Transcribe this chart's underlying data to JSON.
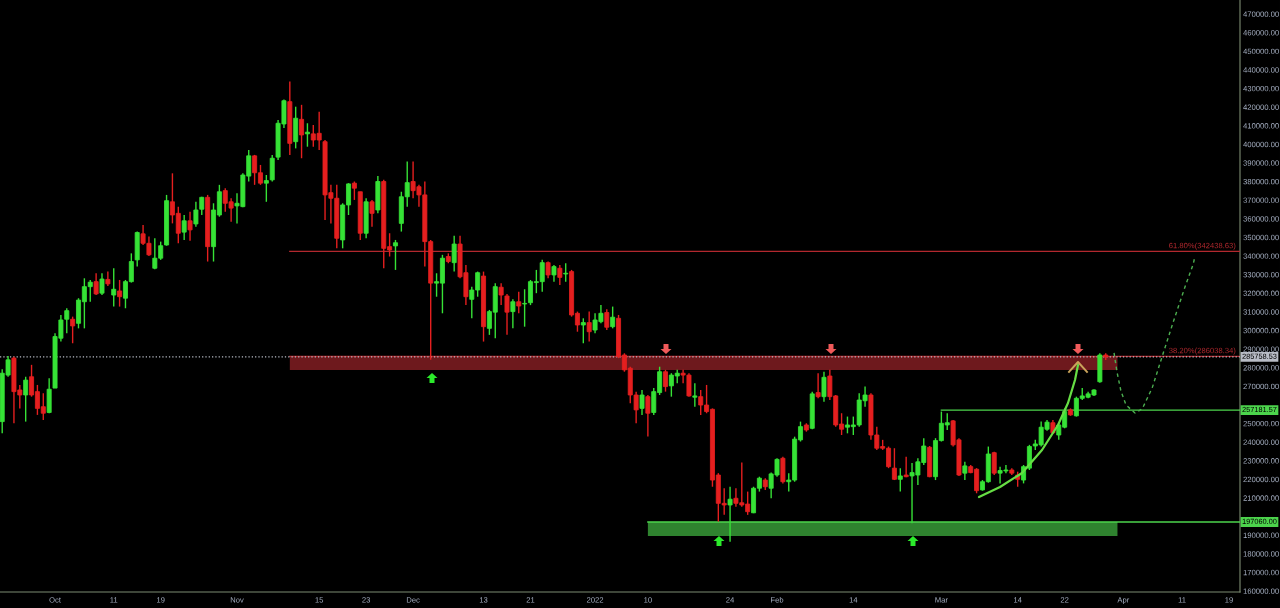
{
  "chart_data": {
    "type": "candlestick",
    "x": [
      "2021-09-22",
      "2021-09-23",
      "2021-09-24",
      "2021-09-25",
      "2021-09-26",
      "2021-09-27",
      "2021-09-28",
      "2021-09-29",
      "2021-09-30",
      "2021-10-01",
      "2021-10-02",
      "2021-10-03",
      "2021-10-04",
      "2021-10-05",
      "2021-10-06",
      "2021-10-07",
      "2021-10-08",
      "2021-10-09",
      "2021-10-10",
      "2021-10-11",
      "2021-10-12",
      "2021-10-13",
      "2021-10-14",
      "2021-10-15",
      "2021-10-16",
      "2021-10-17",
      "2021-10-18",
      "2021-10-19",
      "2021-10-20",
      "2021-10-21",
      "2021-10-22",
      "2021-10-23",
      "2021-10-24",
      "2021-10-25",
      "2021-10-26",
      "2021-10-27",
      "2021-10-28",
      "2021-10-29",
      "2021-10-30",
      "2021-10-31",
      "2021-11-01",
      "2021-11-02",
      "2021-11-03",
      "2021-11-04",
      "2021-11-05",
      "2021-11-06",
      "2021-11-07",
      "2021-11-08",
      "2021-11-09",
      "2021-11-10",
      "2021-11-11",
      "2021-11-12",
      "2021-11-13",
      "2021-11-14",
      "2021-11-15",
      "2021-11-16",
      "2021-11-17",
      "2021-11-18",
      "2021-11-19",
      "2021-11-20",
      "2021-11-21",
      "2021-11-22",
      "2021-11-23",
      "2021-11-24",
      "2021-11-25",
      "2021-11-26",
      "2021-11-27",
      "2021-11-28",
      "2021-11-29",
      "2021-11-30",
      "2021-12-01",
      "2021-12-02",
      "2021-12-03",
      "2021-12-04",
      "2021-12-05",
      "2021-12-06",
      "2021-12-07",
      "2021-12-08",
      "2021-12-09",
      "2021-12-10",
      "2021-12-11",
      "2021-12-12",
      "2021-12-13",
      "2021-12-14",
      "2021-12-15",
      "2021-12-16",
      "2021-12-17",
      "2021-12-18",
      "2021-12-19",
      "2021-12-20",
      "2021-12-21",
      "2021-12-22",
      "2021-12-23",
      "2021-12-24",
      "2021-12-25",
      "2021-12-26",
      "2021-12-27",
      "2021-12-28",
      "2021-12-29",
      "2021-12-30",
      "2021-12-31",
      "2022-01-01",
      "2022-01-02",
      "2022-01-03",
      "2022-01-04",
      "2022-01-05",
      "2022-01-06",
      "2022-01-07",
      "2022-01-08",
      "2022-01-09",
      "2022-01-10",
      "2022-01-11",
      "2022-01-12",
      "2022-01-13",
      "2022-01-14",
      "2022-01-15",
      "2022-01-16",
      "2022-01-17",
      "2022-01-18",
      "2022-01-19",
      "2022-01-20",
      "2022-01-21",
      "2022-01-22",
      "2022-01-23",
      "2022-01-24",
      "2022-01-25",
      "2022-01-26",
      "2022-01-27",
      "2022-01-28",
      "2022-01-29",
      "2022-01-30",
      "2022-01-31",
      "2022-02-01",
      "2022-02-02",
      "2022-02-03",
      "2022-02-04",
      "2022-02-05",
      "2022-02-06",
      "2022-02-07",
      "2022-02-08",
      "2022-02-09",
      "2022-02-10",
      "2022-02-11",
      "2022-02-12",
      "2022-02-13",
      "2022-02-14",
      "2022-02-15",
      "2022-02-16",
      "2022-02-17",
      "2022-02-18",
      "2022-02-19",
      "2022-02-20",
      "2022-02-21",
      "2022-02-22",
      "2022-02-23",
      "2022-02-24",
      "2022-02-25",
      "2022-02-26",
      "2022-02-27",
      "2022-02-28",
      "2022-03-01",
      "2022-03-02",
      "2022-03-03",
      "2022-03-04",
      "2022-03-05",
      "2022-03-06",
      "2022-03-07",
      "2022-03-08",
      "2022-03-09",
      "2022-03-10",
      "2022-03-11",
      "2022-03-12",
      "2022-03-13",
      "2022-03-14",
      "2022-03-15",
      "2022-03-16",
      "2022-03-17",
      "2022-03-18",
      "2022-03-19",
      "2022-03-20",
      "2022-03-21",
      "2022-03-22",
      "2022-03-23",
      "2022-03-24",
      "2022-03-25",
      "2022-03-26",
      "2022-03-27",
      "2022-03-28",
      "2022-03-29"
    ],
    "ohlc": [
      [
        251000,
        279100,
        244700,
        277000
      ],
      [
        276000,
        286200,
        275100,
        284200
      ],
      [
        285100,
        285900,
        250100,
        267100
      ],
      [
        268000,
        270700,
        258100,
        265300
      ],
      [
        265300,
        275100,
        251000,
        273300
      ],
      [
        275100,
        281500,
        264400,
        265300
      ],
      [
        267100,
        270700,
        254600,
        258100
      ],
      [
        259000,
        266200,
        251900,
        255500
      ],
      [
        255900,
        274300,
        255500,
        268400
      ],
      [
        269000,
        298500,
        269000,
        296700
      ],
      [
        295800,
        308300,
        294000,
        305600
      ],
      [
        306000,
        311900,
        298500,
        310600
      ],
      [
        306000,
        307400,
        293100,
        302400
      ],
      [
        303800,
        317300,
        301100,
        316300
      ],
      [
        315400,
        328000,
        301100,
        323500
      ],
      [
        323500,
        327100,
        315400,
        325900
      ],
      [
        326200,
        330700,
        319000,
        319600
      ],
      [
        320000,
        330700,
        319000,
        327600
      ],
      [
        327400,
        331600,
        323900,
        325000
      ],
      [
        319000,
        333400,
        312800,
        322100
      ],
      [
        321200,
        327100,
        312800,
        318100
      ],
      [
        317300,
        327100,
        311900,
        326200
      ],
      [
        326200,
        341400,
        325700,
        337000
      ],
      [
        337900,
        353100,
        334300,
        352600
      ],
      [
        351900,
        356600,
        345900,
        346800
      ],
      [
        346800,
        350400,
        340000,
        340600
      ],
      [
        333400,
        349500,
        332900,
        338800
      ],
      [
        338800,
        347700,
        337900,
        345500
      ],
      [
        345900,
        372800,
        345500,
        369700
      ],
      [
        369100,
        384400,
        357500,
        362000
      ],
      [
        362900,
        366500,
        346800,
        352200
      ],
      [
        352800,
        362000,
        348600,
        358900
      ],
      [
        358900,
        363800,
        348200,
        354000
      ],
      [
        357200,
        369100,
        355700,
        364700
      ],
      [
        365100,
        371800,
        362000,
        371500
      ],
      [
        371500,
        372800,
        337000,
        345000
      ],
      [
        345000,
        368300,
        337000,
        364700
      ],
      [
        362000,
        378200,
        361100,
        374500
      ],
      [
        375100,
        376400,
        363800,
        368300
      ],
      [
        369100,
        371000,
        358400,
        365700
      ],
      [
        366900,
        373700,
        357500,
        368300
      ],
      [
        366500,
        384400,
        366200,
        383500
      ],
      [
        382900,
        396900,
        380000,
        393800
      ],
      [
        393800,
        394300,
        378200,
        384700
      ],
      [
        384700,
        388900,
        378200,
        379100
      ],
      [
        379100,
        383500,
        369100,
        380500
      ],
      [
        380900,
        394300,
        380000,
        392500
      ],
      [
        393100,
        413000,
        391600,
        411300
      ],
      [
        410900,
        424100,
        408700,
        423400
      ],
      [
        422900,
        433700,
        394300,
        400500
      ],
      [
        401400,
        420200,
        397800,
        414000
      ],
      [
        413400,
        421200,
        392500,
        405000
      ],
      [
        405600,
        411300,
        398700,
        406500
      ],
      [
        405600,
        410400,
        398700,
        402300
      ],
      [
        405900,
        417500,
        396900,
        402300
      ],
      [
        401400,
        402300,
        359300,
        372800
      ],
      [
        374000,
        378200,
        357500,
        371000
      ],
      [
        371000,
        378200,
        344100,
        349500
      ],
      [
        348600,
        368300,
        344100,
        367400
      ],
      [
        367400,
        379100,
        362000,
        378700
      ],
      [
        379100,
        380000,
        370100,
        376400
      ],
      [
        374500,
        374500,
        348600,
        352200
      ],
      [
        352200,
        371000,
        349500,
        369100
      ],
      [
        369100,
        370100,
        355700,
        362900
      ],
      [
        364700,
        382900,
        362900,
        380000
      ],
      [
        380000,
        380900,
        333400,
        344100
      ],
      [
        345000,
        352200,
        339700,
        343200
      ],
      [
        345400,
        348600,
        332500,
        347100
      ],
      [
        357500,
        374500,
        353100,
        371800
      ],
      [
        371800,
        390700,
        366500,
        379400
      ],
      [
        380000,
        390700,
        371000,
        375100
      ],
      [
        377200,
        378200,
        366500,
        372800
      ],
      [
        372800,
        380000,
        334300,
        347700
      ],
      [
        347700,
        348600,
        284200,
        325400
      ],
      [
        325400,
        330700,
        318100,
        326200
      ],
      [
        325400,
        340600,
        309200,
        338800
      ],
      [
        339700,
        341400,
        336100,
        337000
      ],
      [
        336400,
        350800,
        331600,
        346400
      ],
      [
        346400,
        350800,
        328000,
        328800
      ],
      [
        331000,
        335200,
        313600,
        318100
      ],
      [
        316700,
        323500,
        306500,
        321700
      ],
      [
        321700,
        331600,
        318100,
        331000
      ],
      [
        329200,
        331600,
        294000,
        302000
      ],
      [
        301100,
        311000,
        297600,
        310100
      ],
      [
        309800,
        325400,
        295800,
        323500
      ],
      [
        323200,
        325400,
        313600,
        319000
      ],
      [
        318500,
        319600,
        297600,
        309800
      ],
      [
        310100,
        316700,
        301100,
        315400
      ],
      [
        315400,
        320800,
        309200,
        313100
      ],
      [
        314200,
        322100,
        302000,
        314500
      ],
      [
        314900,
        327100,
        313600,
        326200
      ],
      [
        325700,
        332500,
        320000,
        326200
      ],
      [
        326200,
        337900,
        320800,
        336400
      ],
      [
        336400,
        337000,
        328000,
        329800
      ],
      [
        329800,
        335200,
        326200,
        334300
      ],
      [
        333400,
        335200,
        324400,
        328500
      ],
      [
        330300,
        336100,
        326200,
        330700
      ],
      [
        331600,
        332500,
        307400,
        308300
      ],
      [
        309200,
        310100,
        299300,
        302900
      ],
      [
        302900,
        306500,
        293100,
        304200
      ],
      [
        304200,
        310100,
        294000,
        299300
      ],
      [
        300200,
        309200,
        298500,
        305600
      ],
      [
        304700,
        313600,
        303800,
        309200
      ],
      [
        309600,
        311400,
        300200,
        301700
      ],
      [
        302000,
        312800,
        301100,
        307100
      ],
      [
        306500,
        308300,
        285100,
        285900
      ],
      [
        286800,
        287700,
        277800,
        278800
      ],
      [
        279700,
        280500,
        260800,
        265300
      ],
      [
        265300,
        267100,
        250100,
        257300
      ],
      [
        258100,
        268000,
        254600,
        265300
      ],
      [
        264400,
        265300,
        243000,
        255500
      ],
      [
        255900,
        269000,
        254600,
        267100
      ],
      [
        266600,
        280500,
        265300,
        277800
      ],
      [
        277800,
        278800,
        267100,
        269800
      ],
      [
        270200,
        277000,
        264400,
        276000
      ],
      [
        275500,
        278800,
        271600,
        277000
      ],
      [
        277000,
        278800,
        271600,
        276000
      ],
      [
        276000,
        277000,
        264400,
        264800
      ],
      [
        264100,
        271600,
        259000,
        264800
      ],
      [
        264400,
        268000,
        254600,
        259900
      ],
      [
        259900,
        270700,
        255500,
        256400
      ],
      [
        257600,
        258100,
        216000,
        219600
      ],
      [
        222300,
        223300,
        197300,
        207100
      ],
      [
        207100,
        215200,
        200900,
        206200
      ],
      [
        206200,
        216000,
        186500,
        209300
      ],
      [
        209800,
        215200,
        205300,
        207100
      ],
      [
        207400,
        229000,
        205300,
        206200
      ],
      [
        206700,
        213400,
        200900,
        202600
      ],
      [
        202000,
        216000,
        201800,
        215200
      ],
      [
        215200,
        221400,
        213400,
        220600
      ],
      [
        219600,
        220600,
        214300,
        216000
      ],
      [
        215200,
        223600,
        209800,
        222900
      ],
      [
        222300,
        231300,
        221400,
        230700
      ],
      [
        231300,
        232100,
        217800,
        218700
      ],
      [
        218700,
        223300,
        213400,
        219600
      ],
      [
        219600,
        242900,
        218700,
        241600
      ],
      [
        241200,
        251000,
        240300,
        248300
      ],
      [
        249200,
        250100,
        245600,
        246500
      ],
      [
        247400,
        267100,
        246900,
        265900
      ],
      [
        266600,
        277000,
        263500,
        264400
      ],
      [
        264400,
        277800,
        261700,
        274800
      ],
      [
        275500,
        278800,
        262600,
        264400
      ],
      [
        264800,
        265300,
        248300,
        249200
      ],
      [
        249700,
        255500,
        243800,
        246900
      ],
      [
        248000,
        253700,
        244700,
        249200
      ],
      [
        248300,
        253700,
        243800,
        249200
      ],
      [
        249200,
        266200,
        248300,
        262600
      ],
      [
        262200,
        269800,
        259000,
        265300
      ],
      [
        265300,
        266200,
        241200,
        243800
      ],
      [
        243800,
        248300,
        235800,
        236700
      ],
      [
        237600,
        241200,
        235800,
        236700
      ],
      [
        236700,
        237600,
        226000,
        226800
      ],
      [
        226000,
        236700,
        219600,
        220000
      ],
      [
        220000,
        226000,
        213400,
        221800
      ],
      [
        222300,
        232100,
        221100,
        221400
      ],
      [
        221800,
        228700,
        196400,
        223600
      ],
      [
        222300,
        231300,
        216900,
        229400
      ],
      [
        229000,
        242100,
        227700,
        237900
      ],
      [
        237200,
        237900,
        221100,
        221400
      ],
      [
        221400,
        242100,
        219600,
        240800
      ],
      [
        240800,
        256400,
        240300,
        250100
      ],
      [
        249200,
        255500,
        246500,
        250400
      ],
      [
        251400,
        251900,
        237600,
        238500
      ],
      [
        241200,
        242100,
        221800,
        222300
      ],
      [
        223300,
        229400,
        219600,
        227200
      ],
      [
        226800,
        227700,
        223300,
        223600
      ],
      [
        225400,
        226000,
        212500,
        213900
      ],
      [
        214300,
        219600,
        213900,
        218700
      ],
      [
        218700,
        237600,
        218200,
        233600
      ],
      [
        234300,
        234800,
        222300,
        223300
      ],
      [
        223300,
        226800,
        217800,
        224700
      ],
      [
        224500,
        227700,
        223300,
        225000
      ],
      [
        225000,
        226000,
        222300,
        223300
      ],
      [
        222300,
        224100,
        216000,
        220000
      ],
      [
        219600,
        227700,
        217800,
        226800
      ],
      [
        226000,
        238500,
        225000,
        237600
      ],
      [
        237900,
        241200,
        235800,
        239000
      ],
      [
        238500,
        251000,
        237600,
        248000
      ],
      [
        246900,
        251900,
        246100,
        250700
      ],
      [
        250400,
        251900,
        244300,
        245000
      ],
      [
        243800,
        250100,
        241200,
        249200
      ],
      [
        248000,
        258100,
        247400,
        256400
      ],
      [
        257300,
        258100,
        254100,
        254600
      ],
      [
        254100,
        264400,
        253700,
        263500
      ],
      [
        263500,
        269000,
        262600,
        264800
      ],
      [
        264100,
        267100,
        263500,
        265900
      ],
      [
        265300,
        268400,
        264800,
        268000
      ],
      [
        272400,
        287700,
        271900,
        286800
      ],
      [
        286800,
        287700,
        284100,
        285758.53
      ]
    ],
    "colors": [
      "#36e236",
      "#36e236",
      "#e51f1f",
      "#e51f1f",
      "#36e236",
      "#e51f1f",
      "#e51f1f",
      "#e51f1f",
      "#36e236",
      "#36e236",
      "#36e236",
      "#36e236",
      "#e51f1f",
      "#36e236",
      "#36e236",
      "#36e236",
      "#e51f1f",
      "#36e236",
      "#e51f1f",
      "#36e236",
      "#e51f1f",
      "#36e236",
      "#36e236",
      "#36e236",
      "#e51f1f",
      "#e51f1f",
      "#36e236",
      "#36e236",
      "#36e236",
      "#e51f1f",
      "#e51f1f",
      "#36e236",
      "#e51f1f",
      "#36e236",
      "#36e236",
      "#e51f1f",
      "#36e236",
      "#36e236",
      "#e51f1f",
      "#e51f1f",
      "#36e236",
      "#36e236",
      "#36e236",
      "#e51f1f",
      "#e51f1f",
      "#36e236",
      "#36e236",
      "#36e236",
      "#36e236",
      "#e51f1f",
      "#36e236",
      "#e51f1f",
      "#36e236",
      "#e51f1f",
      "#e51f1f",
      "#e51f1f",
      "#e51f1f",
      "#e51f1f",
      "#36e236",
      "#36e236",
      "#e51f1f",
      "#e51f1f",
      "#36e236",
      "#e51f1f",
      "#36e236",
      "#e51f1f",
      "#e51f1f",
      "#36e236",
      "#36e236",
      "#36e236",
      "#e51f1f",
      "#e51f1f",
      "#e51f1f",
      "#e51f1f",
      "#36e236",
      "#36e236",
      "#e51f1f",
      "#36e236",
      "#e51f1f",
      "#e51f1f",
      "#36e236",
      "#36e236",
      "#e51f1f",
      "#36e236",
      "#36e236",
      "#e51f1f",
      "#e51f1f",
      "#36e236",
      "#e51f1f",
      "#36e236",
      "#36e236",
      "#36e236",
      "#36e236",
      "#e51f1f",
      "#36e236",
      "#e51f1f",
      "#36e236",
      "#e51f1f",
      "#e51f1f",
      "#36e236",
      "#e51f1f",
      "#36e236",
      "#36e236",
      "#e51f1f",
      "#36e236",
      "#e51f1f",
      "#e51f1f",
      "#e51f1f",
      "#e51f1f",
      "#36e236",
      "#e51f1f",
      "#36e236",
      "#36e236",
      "#e51f1f",
      "#36e236",
      "#36e236",
      "#e51f1f",
      "#e51f1f",
      "#36e236",
      "#e51f1f",
      "#e51f1f",
      "#e51f1f",
      "#e51f1f",
      "#e51f1f",
      "#36e236",
      "#e51f1f",
      "#e51f1f",
      "#e51f1f",
      "#36e236",
      "#36e236",
      "#e51f1f",
      "#36e236",
      "#36e236",
      "#e51f1f",
      "#36e236",
      "#36e236",
      "#36e236",
      "#e51f1f",
      "#36e236",
      "#e51f1f",
      "#36e236",
      "#e51f1f",
      "#e51f1f",
      "#e51f1f",
      "#36e236",
      "#36e236",
      "#36e236",
      "#36e236",
      "#e51f1f",
      "#e51f1f",
      "#e51f1f",
      "#e51f1f",
      "#e51f1f",
      "#36e236",
      "#e51f1f",
      "#36e236",
      "#36e236",
      "#36e236",
      "#e51f1f",
      "#36e236",
      "#36e236",
      "#36e236",
      "#e51f1f",
      "#e51f1f",
      "#36e236",
      "#e51f1f",
      "#e51f1f",
      "#36e236",
      "#36e236",
      "#e51f1f",
      "#36e236",
      "#36e236",
      "#e51f1f",
      "#e51f1f",
      "#36e236",
      "#36e236",
      "#36e236",
      "#36e236",
      "#36e236",
      "#e51f1f",
      "#36e236",
      "#36e236",
      "#e51f1f",
      "#36e236",
      "#36e236",
      "#36e236",
      "#36e236",
      "#36e236",
      "#e51f1f"
    ],
    "xlim": [
      "2021-09-21T15:00",
      "2022-04-20T21:00"
    ],
    "xticks": [
      {
        "value": "2021-10-01",
        "label": "Oct"
      },
      {
        "value": "2021-10-11",
        "label": "11"
      },
      {
        "value": "2021-10-19",
        "label": "19"
      },
      {
        "value": "2021-11-01",
        "label": "Nov"
      },
      {
        "value": "2021-11-15",
        "label": "15"
      },
      {
        "value": "2021-11-23",
        "label": "23"
      },
      {
        "value": "2021-12-01",
        "label": "Dec"
      },
      {
        "value": "2021-12-13",
        "label": "13"
      },
      {
        "value": "2021-12-21",
        "label": "21"
      },
      {
        "value": "2022-01-01",
        "label": "2022"
      },
      {
        "value": "2022-01-10",
        "label": "10"
      },
      {
        "value": "2022-01-24",
        "label": "24"
      },
      {
        "value": "2022-02-01",
        "label": "Feb"
      },
      {
        "value": "2022-02-14",
        "label": "14"
      },
      {
        "value": "2022-03-01",
        "label": "Mar"
      },
      {
        "value": "2022-03-14",
        "label": "14"
      },
      {
        "value": "2022-03-22",
        "label": "22"
      },
      {
        "value": "2022-04-01",
        "label": "Apr"
      },
      {
        "value": "2022-04-11",
        "label": "11"
      },
      {
        "value": "2022-04-19",
        "label": "19"
      }
    ],
    "ylim": [
      159450,
      477520
    ],
    "yticks": [
      {
        "value": 160000,
        "label": "160000.00"
      },
      {
        "value": 170000,
        "label": "170000.00"
      },
      {
        "value": 180000,
        "label": "180000.00"
      },
      {
        "value": 190000,
        "label": "190000.00"
      },
      {
        "value": 210000,
        "label": "210000.00"
      },
      {
        "value": 220000,
        "label": "220000.00"
      },
      {
        "value": 230000,
        "label": "230000.00"
      },
      {
        "value": 240000,
        "label": "240000.00"
      },
      {
        "value": 250000,
        "label": "250000.00"
      },
      {
        "value": 270000,
        "label": "270000.00"
      },
      {
        "value": 280000,
        "label": "280000.00"
      },
      {
        "value": 290000,
        "label": "290000.00"
      },
      {
        "value": 300000,
        "label": "300000.00"
      },
      {
        "value": 310000,
        "label": "310000.00"
      },
      {
        "value": 320000,
        "label": "320000.00"
      },
      {
        "value": 330000,
        "label": "330000.00"
      },
      {
        "value": 340000,
        "label": "340000.00"
      },
      {
        "value": 350000,
        "label": "350000.00"
      },
      {
        "value": 360000,
        "label": "360000.00"
      },
      {
        "value": 370000,
        "label": "370000.00"
      },
      {
        "value": 380000,
        "label": "380000.00"
      },
      {
        "value": 390000,
        "label": "390000.00"
      },
      {
        "value": 400000,
        "label": "400000.00"
      },
      {
        "value": 410000,
        "label": "410000.00"
      },
      {
        "value": 420000,
        "label": "420000.00"
      },
      {
        "value": 430000,
        "label": "430000.00"
      },
      {
        "value": 440000,
        "label": "440000.00"
      },
      {
        "value": 450000,
        "label": "450000.00"
      },
      {
        "value": 460000,
        "label": "460000.00"
      },
      {
        "value": 470000,
        "label": "470000.00"
      }
    ],
    "series": [
      {
        "type": "line",
        "x": [
          "2021-11-10",
          "2022-04-20T21:00"
        ],
        "values": [
          342438.63,
          342438.63
        ],
        "color": "#b2282e"
      },
      {
        "type": "line",
        "x": [
          "2021-11-10",
          "2022-03-31",
          "2022-04-20T21:00"
        ],
        "values": [
          286038.34,
          286038.34,
          286038.34
        ],
        "lower": [
          278700,
          278700,
          null
        ],
        "upper": [
          286038.34,
          286038.34,
          null
        ],
        "color": "#b2282e"
      },
      {
        "type": "line",
        "name": "257181.57",
        "x": [
          "2022-03-01",
          "2022-04-20T21:00"
        ],
        "values": [
          257181.57,
          257181.57
        ],
        "color": "#4cd44c"
      },
      {
        "type": "line",
        "name": "197060.00",
        "x": [
          "2022-01-10",
          "2022-03-31",
          "2022-04-20T21:00"
        ],
        "values": [
          197060,
          197060,
          197060
        ],
        "lower": [
          189500,
          189500,
          null
        ],
        "upper": [
          197060,
          197060,
          null
        ],
        "color": "#4cd44c"
      },
      {
        "type": "line",
        "line_style": "dashed",
        "color": "#4caf50",
        "x": [
          "2022-03-30T10:00",
          "2022-03-30T22:00",
          "2022-03-31T14:00",
          "2022-04-01T11:00",
          "2022-04-03",
          "2022-04-04T05:00",
          "2022-04-05T22:00",
          "2022-04-07T14:00",
          "2022-04-09T12:00",
          "2022-04-11T12:00",
          "2022-04-12T22:00",
          "2022-04-13T05:00"
        ],
        "values": [
          287900,
          277700,
          267500,
          259900,
          255600,
          257800,
          269100,
          285700,
          304500,
          323300,
          335700,
          340000
        ]
      }
    ],
    "ref_lines": [
      {
        "axis": "y",
        "value": 285758.53,
        "label": "285758.53",
        "line_style": "dotted",
        "color": "#b8bcc6"
      }
    ],
    "annotations": [
      {
        "text": "61.80%(342438.63)",
        "x": "2022-04-20T21:00",
        "y": 342438.63
      },
      {
        "text": "38.20%(286038.34)",
        "x": "2022-04-20T21:00",
        "y": 286038.34
      }
    ]
  }
}
